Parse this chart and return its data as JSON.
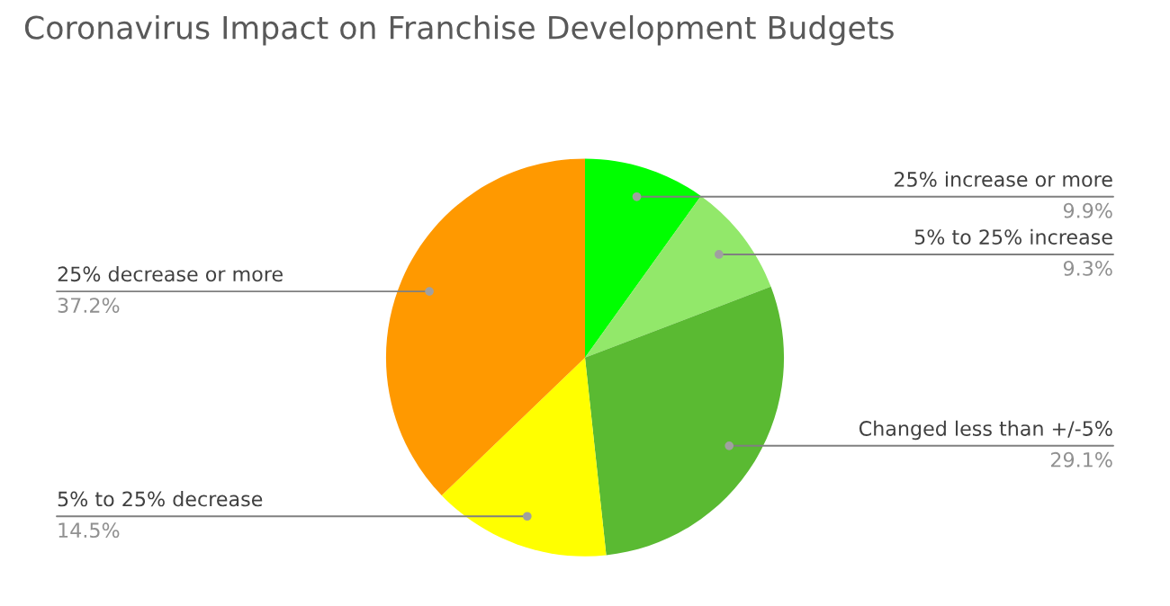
{
  "chart_data": {
    "type": "pie",
    "title": "Coronavirus Impact on Franchise Development Budgets",
    "categories": [
      "25% increase or more",
      "5% to 25% increase",
      "Changed less than +/-5%",
      "5% to 25% decrease",
      "25% decrease or more"
    ],
    "values": [
      9.9,
      9.3,
      29.1,
      14.5,
      37.2
    ],
    "colors": [
      "#00ff00",
      "#92e86a",
      "#5aba32",
      "#ffff00",
      "#ff9900"
    ],
    "value_labels": [
      "9.9%",
      "9.3%",
      "29.1%",
      "14.5%",
      "37.2%"
    ]
  }
}
